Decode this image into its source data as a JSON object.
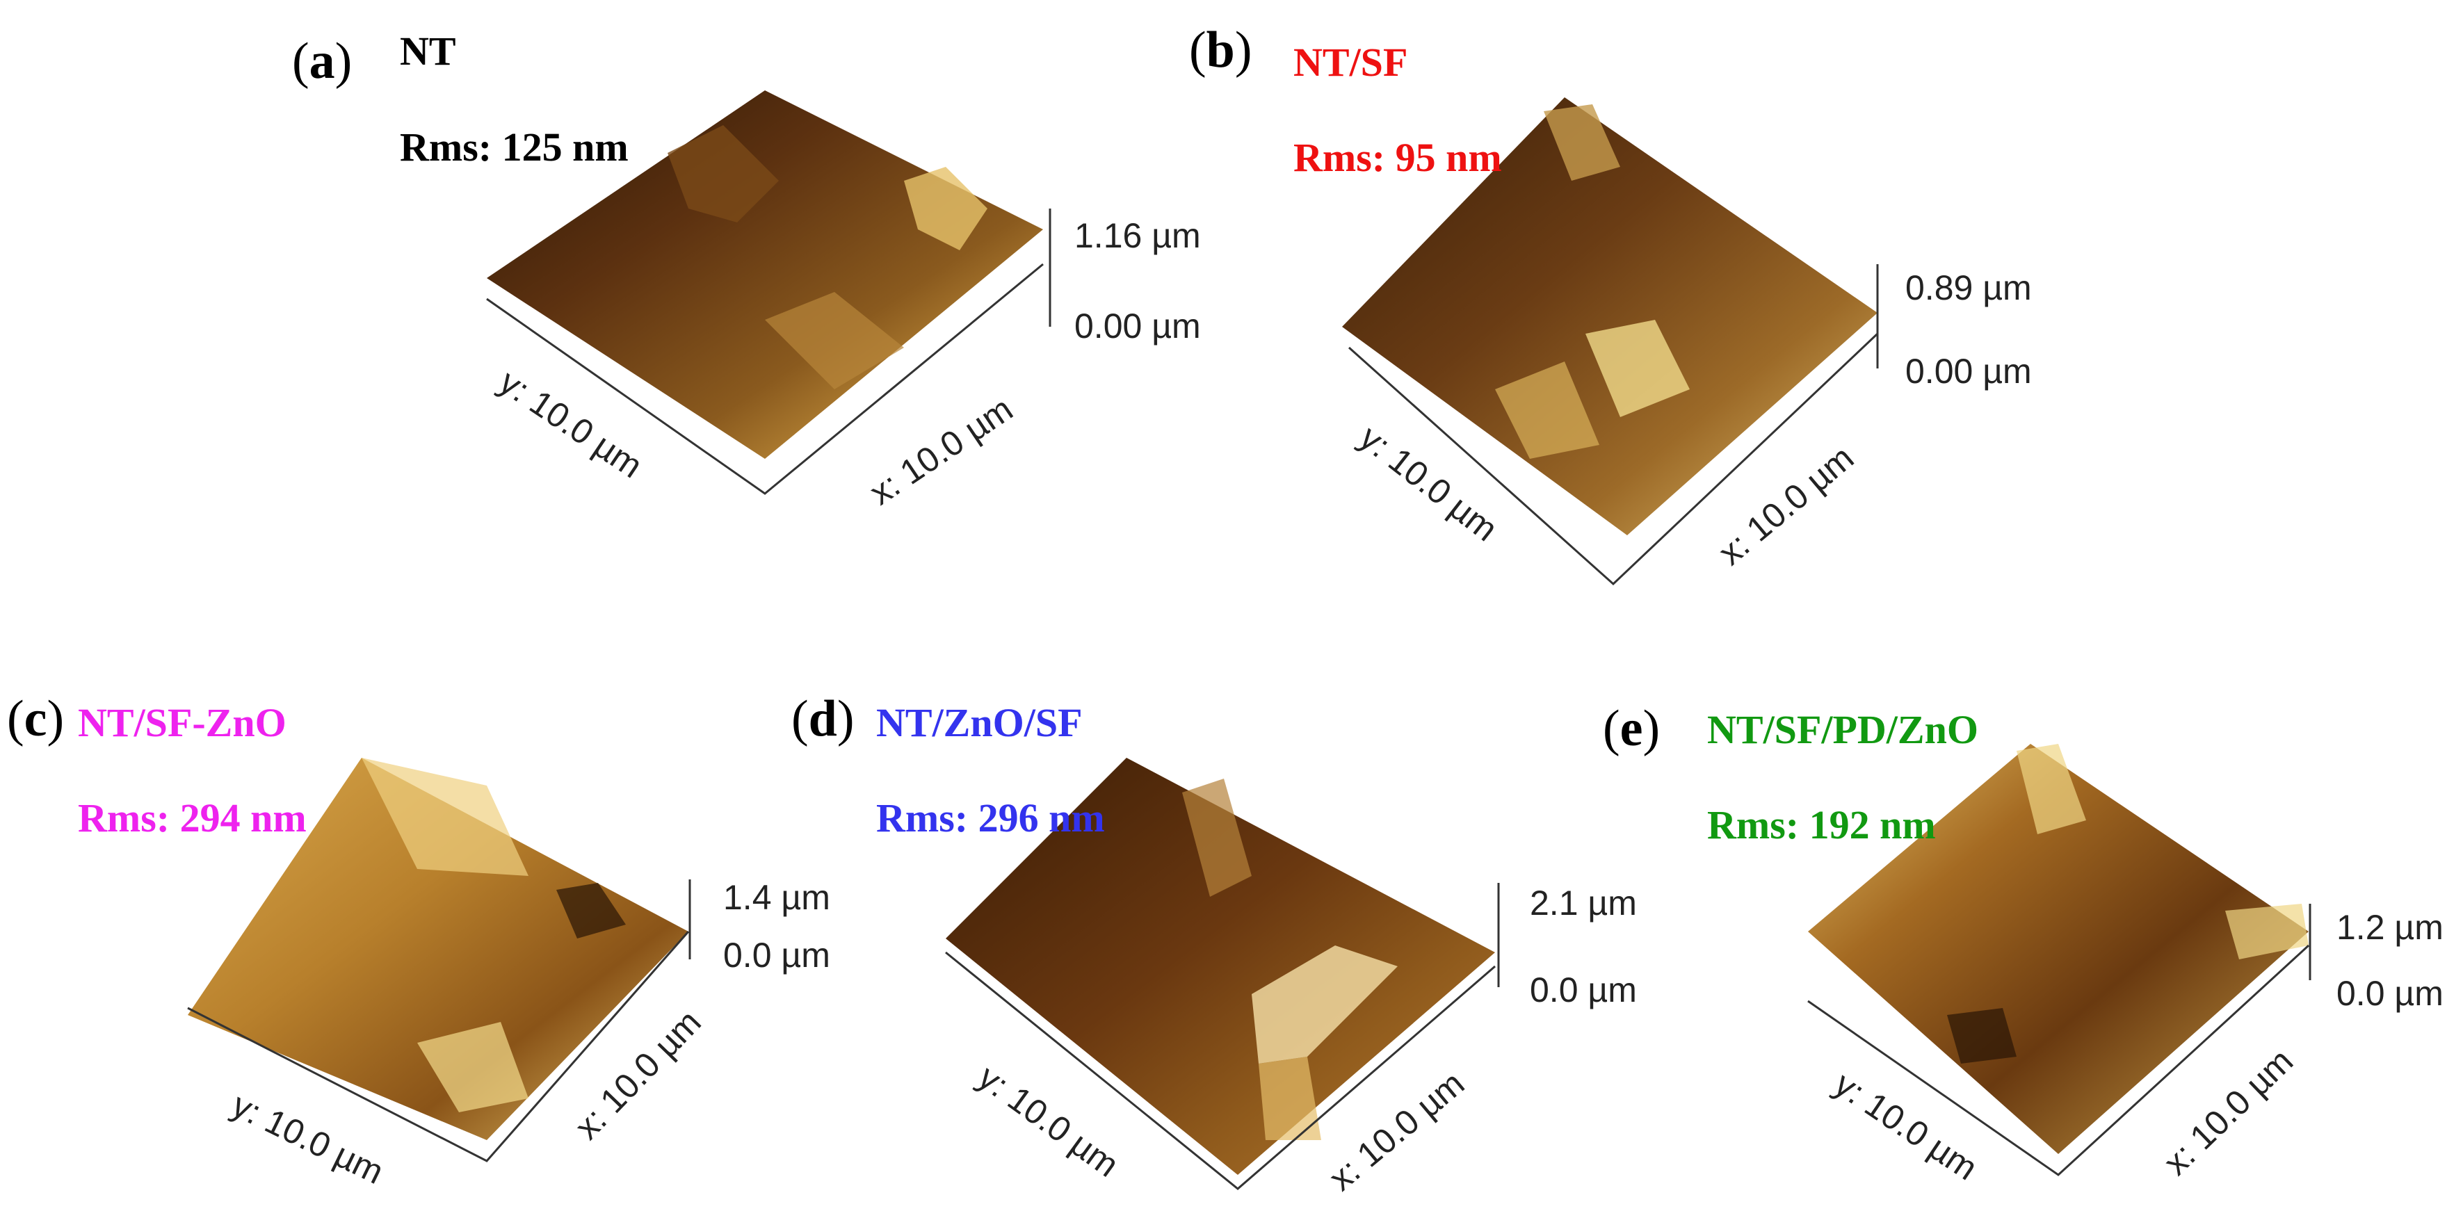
{
  "panels": [
    {
      "letter": "a",
      "name": "NT",
      "rms": "Rms: 125 nm",
      "zmax": "1.16 µm",
      "zmin": "0.00 µm",
      "xlabel": "x: 10.0 µm",
      "ylabel": "y: 10.0 µm",
      "name_color": "#000000"
    },
    {
      "letter": "b",
      "name": "NT/SF",
      "rms": "Rms: 95 nm",
      "zmax": "0.89 µm",
      "zmin": "0.00 µm",
      "xlabel": "x: 10.0 µm",
      "ylabel": "y: 10.0 µm",
      "name_color": "#ee1111"
    },
    {
      "letter": "c",
      "name": "NT/SF-ZnO",
      "rms": "Rms: 294 nm",
      "zmax": "1.4 µm",
      "zmin": "0.0 µm",
      "xlabel": "x: 10.0 µm",
      "ylabel": "y: 10.0 µm",
      "name_color": "#ee22ee"
    },
    {
      "letter": "d",
      "name": "NT/ZnO/SF",
      "rms": "Rms: 296 nm",
      "zmax": "2.1 µm",
      "zmin": "0.0 µm",
      "xlabel": "x: 10.0 µm",
      "ylabel": "y: 10.0 µm",
      "name_color": "#3333ee"
    },
    {
      "letter": "e",
      "name": "NT/SF/PD/ZnO",
      "rms": "Rms: 192 nm",
      "zmax": "1.2 µm",
      "zmin": "0.0 µm",
      "xlabel": "x: 10.0 µm",
      "ylabel": "y: 10.0 µm",
      "name_color": "#119911"
    }
  ]
}
